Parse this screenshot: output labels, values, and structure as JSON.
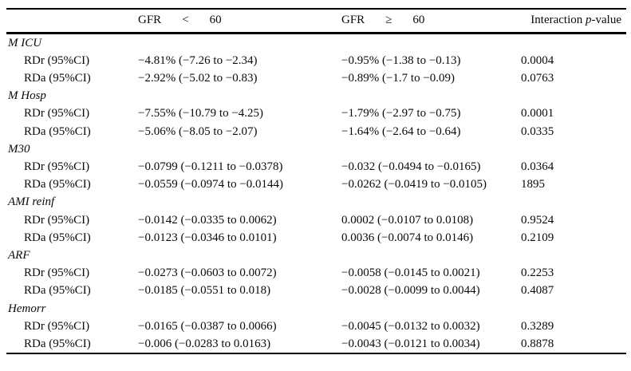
{
  "header": {
    "gfr_lt": {
      "name": "GFR",
      "operator": "<",
      "threshold": "60"
    },
    "gfr_ge": {
      "name": "GFR",
      "operator": "≥",
      "threshold": "60"
    },
    "interaction": {
      "prefix": "Interaction ",
      "p": "p",
      "suffix": "-value"
    }
  },
  "table": {
    "sections": [
      {
        "label": "M ICU",
        "rows": [
          {
            "label": "RDr (95%CI)",
            "gfr_lt_60": "−4.81% (−7.26 to −2.34)",
            "gfr_ge_60": "−0.95% (−1.38 to −0.13)",
            "p_value": "0.0004"
          },
          {
            "label": "RDa (95%CI)",
            "gfr_lt_60": "−2.92% (−5.02 to −0.83)",
            "gfr_ge_60": "−0.89% (−1.7 to −0.09)",
            "p_value": "0.0763"
          }
        ]
      },
      {
        "label": "M Hosp",
        "rows": [
          {
            "label": "RDr (95%CI)",
            "gfr_lt_60": "−7.55% (−10.79 to −4.25)",
            "gfr_ge_60": "−1.79% (−2.97 to −0.75)",
            "p_value": "0.0001"
          },
          {
            "label": "RDa (95%CI)",
            "gfr_lt_60": "−5.06% (−8.05 to −2.07)",
            "gfr_ge_60": "−1.64% (−2.64 to −0.64)",
            "p_value": "0.0335"
          }
        ]
      },
      {
        "label": "M30",
        "rows": [
          {
            "label": "RDr (95%CI)",
            "gfr_lt_60": "−0.0799 (−0.1211 to −0.0378)",
            "gfr_ge_60": "−0.032 (−0.0494 to −0.0165)",
            "p_value": "0.0364"
          },
          {
            "label": "RDa (95%CI)",
            "gfr_lt_60": "−0.0559 (−0.0974 to −0.0144)",
            "gfr_ge_60": "−0.0262 (−0.0419 to −0.0105)",
            "p_value": "1895"
          }
        ]
      },
      {
        "label": "AMI reinf",
        "rows": [
          {
            "label": "RDr (95%CI)",
            "gfr_lt_60": "−0.0142 (−0.0335 to 0.0062)",
            "gfr_ge_60": "0.0002 (−0.0107 to 0.0108)",
            "p_value": "0.9524"
          },
          {
            "label": "RDa (95%CI)",
            "gfr_lt_60": "−0.0123 (−0.0346 to 0.0101)",
            "gfr_ge_60": "0.0036 (−0.0074 to 0.0146)",
            "p_value": "0.2109"
          }
        ]
      },
      {
        "label": "ARF",
        "rows": [
          {
            "label": "RDr (95%CI)",
            "gfr_lt_60": "−0.0273 (−0.0603 to 0.0072)",
            "gfr_ge_60": "−0.0058 (−0.0145 to 0.0021)",
            "p_value": "0.2253"
          },
          {
            "label": "RDa (95%CI)",
            "gfr_lt_60": "−0.0185 (−0.0551 to 0.018)",
            "gfr_ge_60": "−0.0028 (−0.0099 to 0.0044)",
            "p_value": "0.4087"
          }
        ]
      },
      {
        "label": "Hemorr",
        "rows": [
          {
            "label": "RDr (95%CI)",
            "gfr_lt_60": "−0.0165 (−0.0387 to 0.0066)",
            "gfr_ge_60": "−0.0045 (−0.0132 to 0.0032)",
            "p_value": "0.3289"
          },
          {
            "label": "RDa (95%CI)",
            "gfr_lt_60": "−0.006 (−0.0283 to 0.0163)",
            "gfr_ge_60": "−0.0043 (−0.0121 to 0.0034)",
            "p_value": "0.8878"
          }
        ]
      }
    ]
  },
  "colors": {
    "text": "#0a0a0a",
    "rule": "#000000",
    "background": "#ffffff"
  }
}
